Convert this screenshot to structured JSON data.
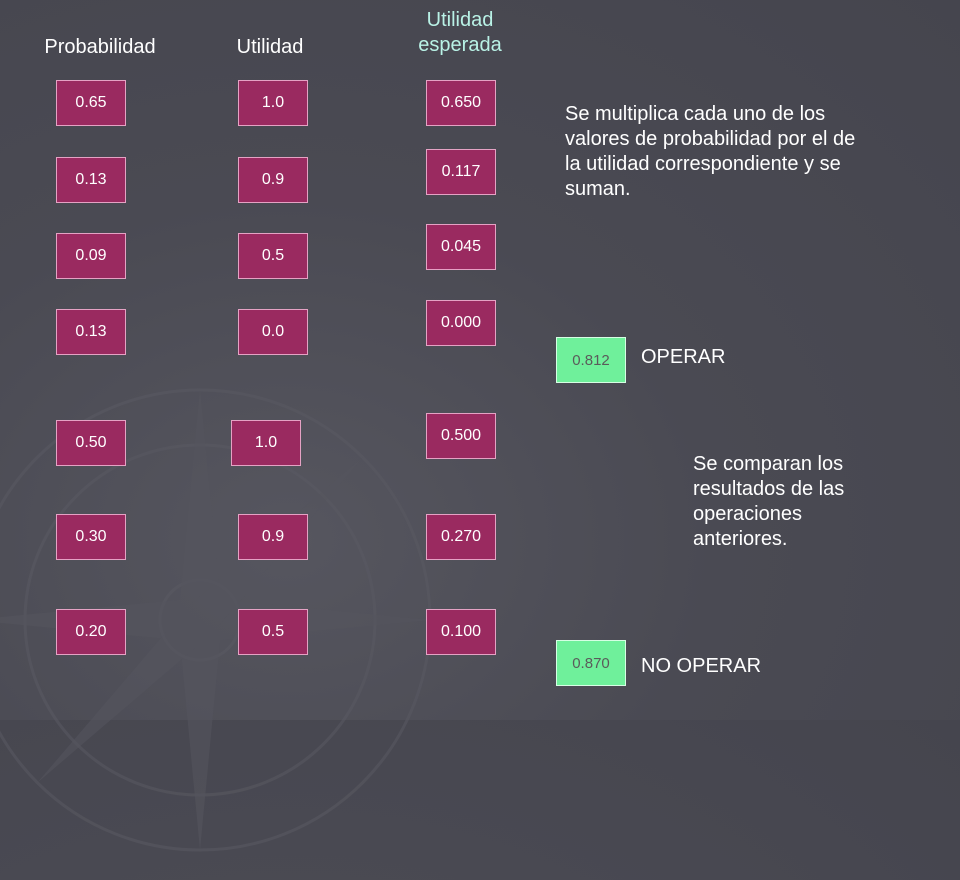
{
  "headers": {
    "probabilidad": "Probabilidad",
    "utilidad": "Utilidad",
    "esperada_line1": "Utilidad",
    "esperada_line2": "esperada"
  },
  "group_operar": {
    "probabilidad": [
      "0.65",
      "0.13",
      "0.09",
      "0.13"
    ],
    "utilidad": [
      "1.0",
      "0.9",
      "0.5",
      "0.0"
    ],
    "esperada": [
      "0.650",
      "0.117",
      "0.045",
      "0.000"
    ]
  },
  "group_no_operar": {
    "probabilidad": [
      "0.50",
      "0.30",
      "0.20"
    ],
    "utilidad": [
      "1.0",
      "0.9",
      "0.5"
    ],
    "esperada": [
      "0.500",
      "0.270",
      "0.100"
    ]
  },
  "explanation_1": "Se multiplica cada uno de los valores de probabilidad por el de la utilidad correspondiente  y se suman.",
  "explanation_2": "Se comparan los resultados de las operaciones anteriores.",
  "result_operar": {
    "value": "0.812",
    "label": "OPERAR"
  },
  "result_no_operar": {
    "value": "0.870",
    "label": "NO OPERAR"
  },
  "colors": {
    "cell_fill": "#9a2a60",
    "result_fill": "#6ff09b",
    "background": "#4a4a53",
    "header_accent": "#b9f2e6"
  },
  "decorative_icons": [
    "compass-watermark-icon"
  ]
}
